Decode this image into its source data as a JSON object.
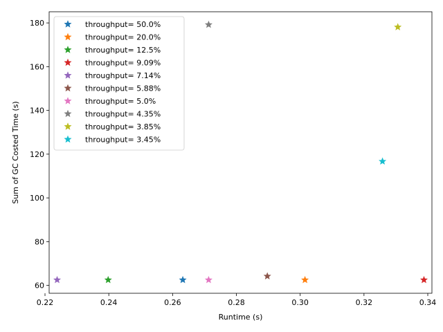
{
  "chart_data": {
    "type": "scatter",
    "title": "",
    "xlabel": "Runtime (s)",
    "ylabel": "Sum of GC Costed Time (s)",
    "xlim": [
      0.2213,
      0.3413
    ],
    "ylim": [
      56.4,
      185.1
    ],
    "xticks": [
      0.22,
      0.24,
      0.26,
      0.28,
      0.3,
      0.32,
      0.34
    ],
    "xtick_labels": [
      "0.22",
      "0.24",
      "0.26",
      "0.28",
      "0.30",
      "0.32",
      "0.34"
    ],
    "yticks": [
      60,
      80,
      100,
      120,
      140,
      160,
      180
    ],
    "ytick_labels": [
      "60",
      "80",
      "100",
      "120",
      "140",
      "160",
      "180"
    ],
    "grid": false,
    "legend_position": "top-left",
    "marker": "star",
    "series": [
      {
        "name": "throughput= 50.0%",
        "color": "#1f77b4",
        "points": [
          {
            "x": 0.2632,
            "y": 62.5
          }
        ]
      },
      {
        "name": "throughput= 20.0%",
        "color": "#ff7f0e",
        "points": [
          {
            "x": 0.3015,
            "y": 62.5
          }
        ]
      },
      {
        "name": "throughput= 12.5%",
        "color": "#2ca02c",
        "points": [
          {
            "x": 0.2398,
            "y": 62.5
          }
        ]
      },
      {
        "name": "throughput= 9.09%",
        "color": "#d62728",
        "points": [
          {
            "x": 0.3388,
            "y": 62.5
          }
        ]
      },
      {
        "name": "throughput= 7.14%",
        "color": "#9467bd",
        "points": [
          {
            "x": 0.2238,
            "y": 62.5
          }
        ]
      },
      {
        "name": "throughput= 5.88%",
        "color": "#8c564b",
        "points": [
          {
            "x": 0.2897,
            "y": 64.2
          }
        ]
      },
      {
        "name": "throughput= 5.0%",
        "color": "#e377c2",
        "points": [
          {
            "x": 0.2713,
            "y": 62.5
          }
        ]
      },
      {
        "name": "throughput= 4.35%",
        "color": "#7f7f7f",
        "points": [
          {
            "x": 0.2713,
            "y": 179.2
          }
        ]
      },
      {
        "name": "throughput= 3.85%",
        "color": "#bcbd22",
        "points": [
          {
            "x": 0.3306,
            "y": 178.1
          }
        ]
      },
      {
        "name": "throughput= 3.45%",
        "color": "#17becf",
        "points": [
          {
            "x": 0.3258,
            "y": 116.7
          }
        ]
      }
    ]
  }
}
